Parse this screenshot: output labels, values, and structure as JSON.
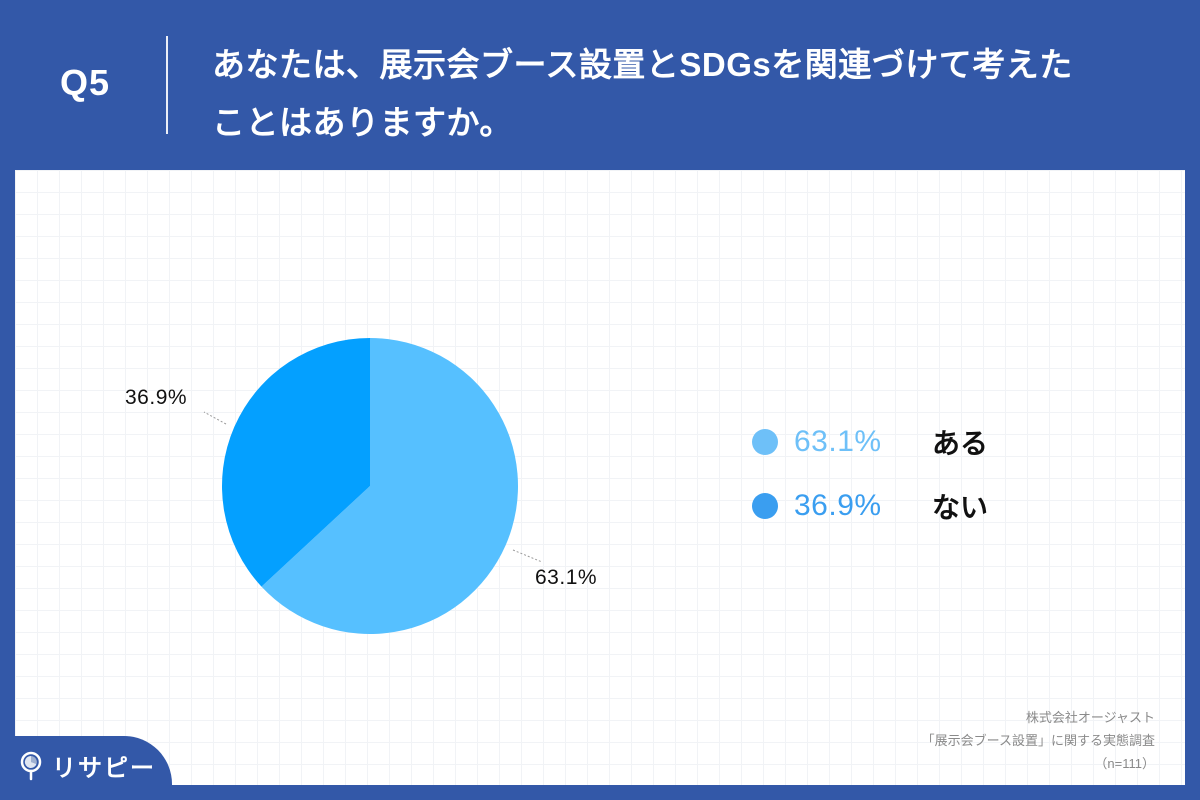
{
  "header": {
    "question_number": "Q5",
    "question_line1": "あなたは、展示会ブース設置とSDGsを関連づけて考えた",
    "question_line2": "ことはありますか。"
  },
  "chart_data": {
    "type": "pie",
    "title": "あなたは、展示会ブース設置とSDGsを関連づけて考えたことはありますか。",
    "categories": [
      "ある",
      "ない"
    ],
    "values": [
      63.1,
      36.9
    ],
    "unit": "%",
    "colors": [
      "#56c0ff",
      "#04a0ff"
    ],
    "data_labels": [
      "63.1%",
      "36.9%"
    ],
    "start_angle": "12 o'clock, clockwise",
    "legend_position": "right",
    "grid": false
  },
  "pie_labels": {
    "slice1": "63.1%",
    "slice2": "36.9%"
  },
  "legend": {
    "items": [
      {
        "pct": "63.1%",
        "label": "ある",
        "color": "#6ec0f8"
      },
      {
        "pct": "36.9%",
        "label": "ない",
        "color": "#3a9ef0"
      }
    ]
  },
  "source": {
    "line1": "株式会社オージャスト",
    "line2": "「展示会ブース設置」に関する実態調査",
    "line3": "（n=111）"
  },
  "logo": {
    "text": "リサピー",
    "icon": "pin-pie-icon"
  },
  "colors": {
    "background": "#3358a8",
    "panel": "#ffffff"
  }
}
